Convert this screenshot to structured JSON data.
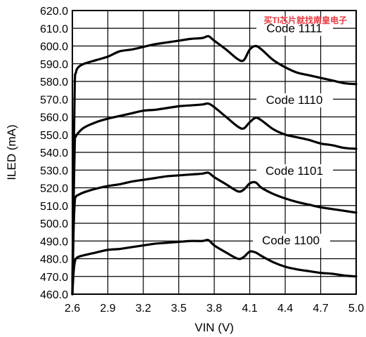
{
  "watermark": "买TI芯片就找南皇电子",
  "chart_data": {
    "type": "line",
    "title": "",
    "xlabel": "VIN (V)",
    "ylabel": "ILED (mA)",
    "xlim": [
      2.6,
      5.0
    ],
    "ylim": [
      460.0,
      620.0
    ],
    "grid": true,
    "legend": "none",
    "x_ticks": [
      "2.6",
      "2.9",
      "3.2",
      "3.5",
      "3.8",
      "4.1",
      "4.4",
      "4.7",
      "5.0"
    ],
    "y_ticks": [
      "460.0",
      "470.0",
      "480.0",
      "490.0",
      "500.0",
      "510.0",
      "520.0",
      "530.0",
      "540.0",
      "550.0",
      "560.0",
      "570.0",
      "580.0",
      "590.0",
      "600.0",
      "610.0",
      "620.0"
    ],
    "series": [
      {
        "name": "Code 1111",
        "x": [
          2.6,
          2.61,
          2.62,
          2.63,
          2.65,
          2.7,
          2.8,
          2.9,
          3.0,
          3.1,
          3.2,
          3.3,
          3.4,
          3.5,
          3.6,
          3.7,
          3.75,
          3.8,
          3.9,
          4.0,
          4.05,
          4.1,
          4.15,
          4.2,
          4.3,
          4.4,
          4.5,
          4.6,
          4.7,
          4.8,
          4.9,
          5.0
        ],
        "y": [
          460.0,
          530.0,
          578.0,
          585.0,
          588.0,
          590.0,
          592.0,
          594.0,
          597.0,
          598.0,
          599.5,
          601.0,
          602.0,
          603.0,
          604.0,
          604.5,
          605.5,
          603.0,
          598.0,
          592.5,
          592.0,
          598.0,
          600.0,
          598.0,
          592.0,
          588.0,
          585.0,
          583.5,
          582.0,
          580.5,
          579.0,
          578.5
        ]
      },
      {
        "name": "Code 1110",
        "x": [
          2.6,
          2.61,
          2.62,
          2.63,
          2.65,
          2.7,
          2.8,
          2.9,
          3.0,
          3.1,
          3.2,
          3.3,
          3.4,
          3.5,
          3.6,
          3.7,
          3.75,
          3.8,
          3.9,
          4.0,
          4.05,
          4.1,
          4.15,
          4.2,
          4.3,
          4.4,
          4.5,
          4.6,
          4.7,
          4.8,
          4.9,
          5.0
        ],
        "y": [
          460.0,
          510.0,
          545.0,
          549.0,
          551.0,
          554.0,
          557.0,
          559.0,
          560.5,
          562.0,
          563.5,
          564.0,
          565.0,
          566.0,
          566.5,
          567.0,
          567.5,
          565.5,
          560.0,
          554.5,
          553.5,
          557.0,
          559.5,
          558.0,
          553.0,
          550.0,
          548.5,
          547.0,
          545.0,
          544.0,
          542.5,
          542.0
        ]
      },
      {
        "name": "Code 1101",
        "x": [
          2.6,
          2.61,
          2.62,
          2.63,
          2.65,
          2.7,
          2.8,
          2.9,
          3.0,
          3.1,
          3.2,
          3.3,
          3.4,
          3.5,
          3.6,
          3.7,
          3.75,
          3.8,
          3.9,
          4.0,
          4.05,
          4.1,
          4.15,
          4.2,
          4.3,
          4.4,
          4.5,
          4.6,
          4.7,
          4.8,
          4.9,
          5.0
        ],
        "y": [
          460.0,
          495.0,
          512.0,
          515.0,
          516.0,
          517.5,
          519.5,
          521.0,
          522.0,
          523.5,
          524.5,
          525.5,
          526.5,
          527.0,
          527.5,
          528.0,
          528.5,
          526.0,
          522.0,
          518.0,
          519.0,
          522.5,
          523.0,
          520.0,
          516.5,
          514.0,
          512.0,
          510.5,
          509.0,
          508.0,
          507.0,
          506.0
        ]
      },
      {
        "name": "Code 1100",
        "x": [
          2.6,
          2.61,
          2.62,
          2.63,
          2.65,
          2.7,
          2.8,
          2.9,
          3.0,
          3.1,
          3.2,
          3.3,
          3.4,
          3.5,
          3.6,
          3.7,
          3.75,
          3.8,
          3.9,
          4.0,
          4.05,
          4.1,
          4.15,
          4.2,
          4.3,
          4.4,
          4.5,
          4.6,
          4.7,
          4.8,
          4.9,
          5.0
        ],
        "y": [
          460.0,
          472.0,
          478.0,
          480.0,
          481.0,
          482.0,
          483.5,
          485.0,
          485.5,
          486.5,
          487.5,
          488.5,
          489.0,
          489.5,
          490.0,
          490.0,
          490.5,
          487.5,
          483.5,
          480.0,
          481.0,
          484.0,
          483.5,
          481.5,
          478.0,
          475.5,
          474.0,
          473.0,
          472.0,
          471.5,
          470.5,
          470.0
        ]
      }
    ]
  }
}
